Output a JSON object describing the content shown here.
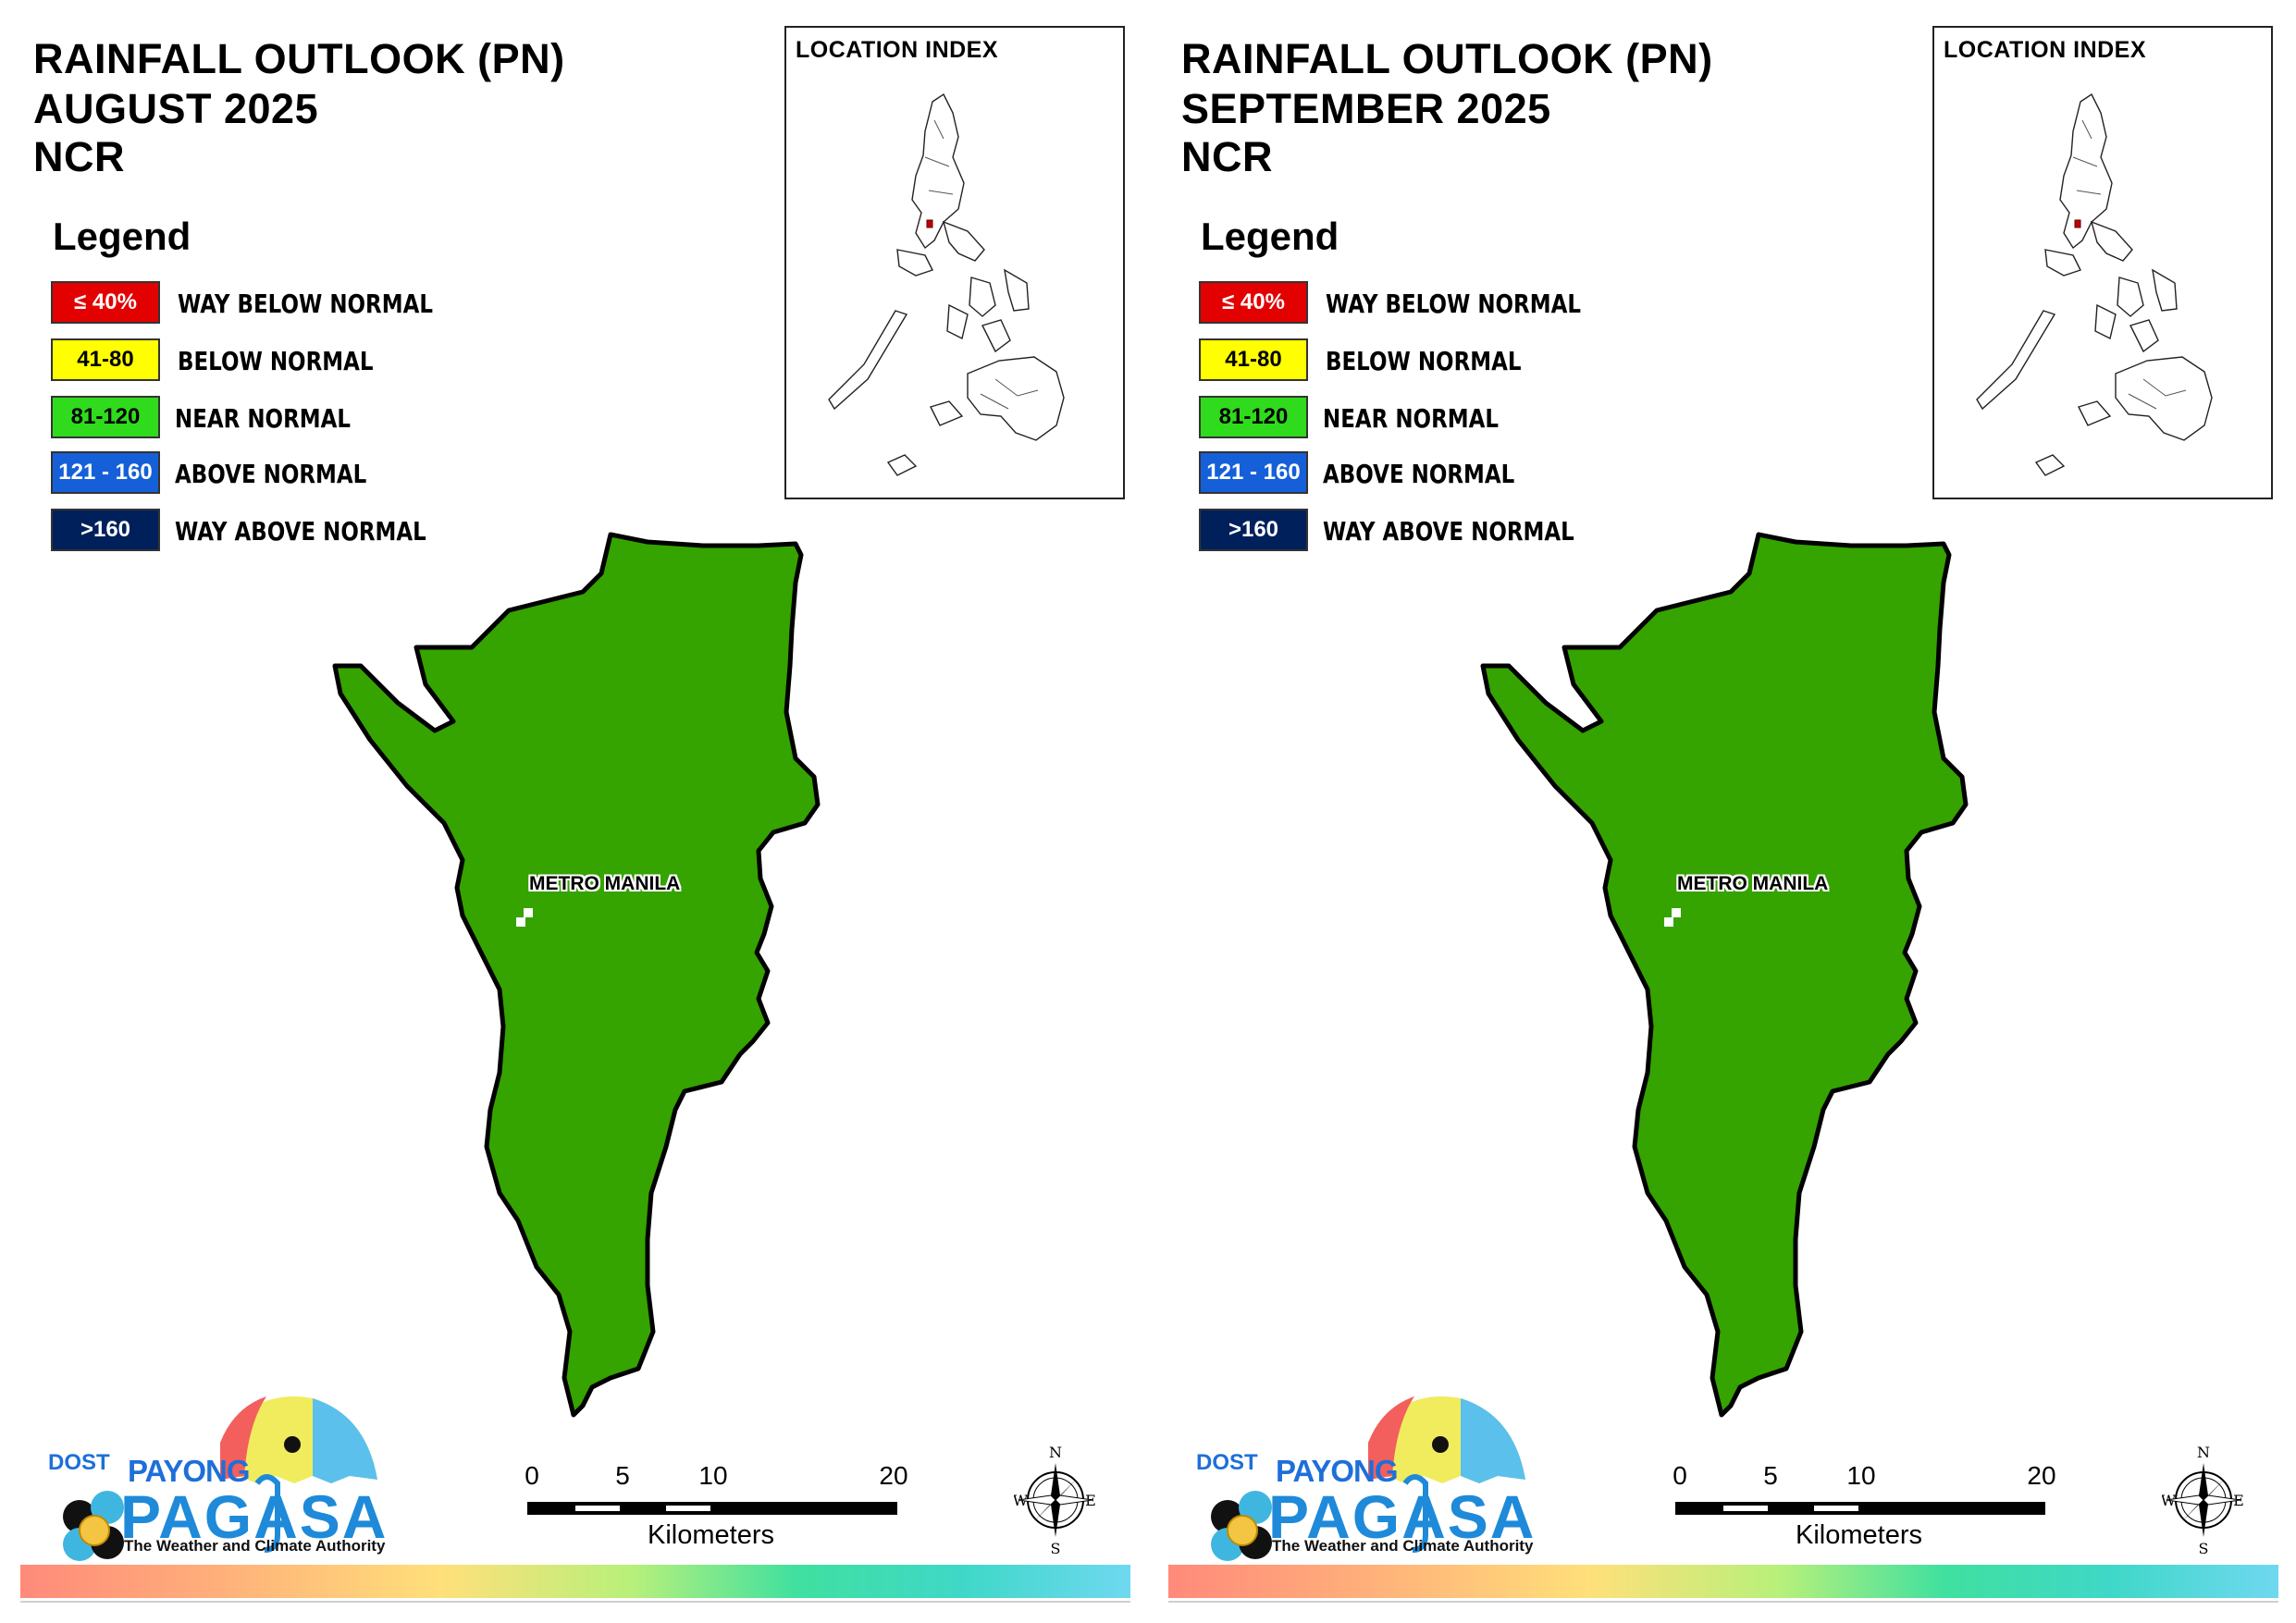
{
  "colors": {
    "way_below": "#e30000",
    "below": "#ffff00",
    "near": "#2fdb1c",
    "above": "#1560d8",
    "way_above": "#00205c",
    "map_fill": "#35a300"
  },
  "panels": [
    {
      "title": [
        "RAINFALL OUTLOOK (PN)",
        "AUGUST 2025",
        "NCR"
      ],
      "legend": {
        "title": "Legend",
        "items": [
          {
            "range": "≤ 40%",
            "label": "WAY BELOW NORMAL"
          },
          {
            "range": "41-80",
            "label": "BELOW NORMAL"
          },
          {
            "range": "81-120",
            "label": "NEAR NORMAL"
          },
          {
            "range": "121 - 160",
            "label": "ABOVE NORMAL"
          },
          {
            "range": ">160",
            "label": "WAY ABOVE NORMAL"
          }
        ]
      },
      "location_index": "LOCATION INDEX",
      "region_label": "METRO MANILA",
      "scale": {
        "ticks": [
          "0",
          "5",
          "10",
          "20"
        ],
        "unit": "Kilometers"
      },
      "compass": {
        "n": "N",
        "s": "S",
        "e": "E",
        "w": "W"
      },
      "logo": {
        "dost": "DOST",
        "payong": "PAYONG",
        "pagasa": "PAGASA",
        "tagline": "The Weather and Climate Authority"
      }
    },
    {
      "title": [
        "RAINFALL OUTLOOK (PN)",
        "SEPTEMBER 2025",
        "NCR"
      ],
      "legend": {
        "title": "Legend",
        "items": [
          {
            "range": "≤ 40%",
            "label": "WAY BELOW NORMAL"
          },
          {
            "range": "41-80",
            "label": "BELOW NORMAL"
          },
          {
            "range": "81-120",
            "label": "NEAR NORMAL"
          },
          {
            "range": "121 - 160",
            "label": "ABOVE NORMAL"
          },
          {
            "range": ">160",
            "label": "WAY ABOVE NORMAL"
          }
        ]
      },
      "location_index": "LOCATION INDEX",
      "region_label": "METRO MANILA",
      "scale": {
        "ticks": [
          "0",
          "5",
          "10",
          "20"
        ],
        "unit": "Kilometers"
      },
      "compass": {
        "n": "N",
        "s": "S",
        "e": "E",
        "w": "W"
      },
      "logo": {
        "dost": "DOST",
        "payong": "PAYONG",
        "pagasa": "PAGASA",
        "tagline": "The Weather and Climate Authority"
      }
    }
  ]
}
